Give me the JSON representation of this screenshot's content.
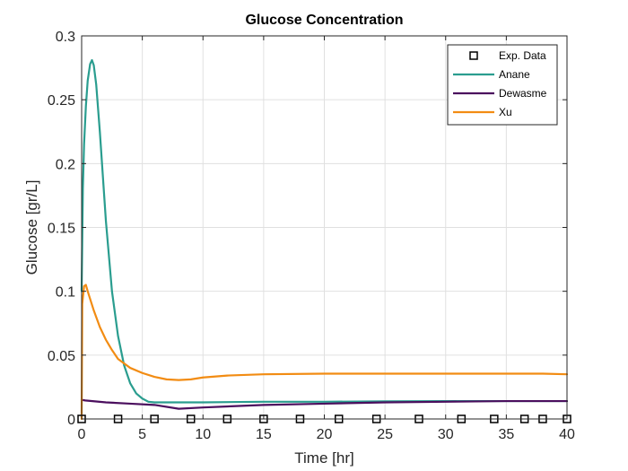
{
  "chart_data": {
    "type": "line",
    "title": "Glucose Concentration",
    "xlabel": "Time [hr]",
    "ylabel": "Glucose [gr/L]",
    "xlim": [
      0,
      40
    ],
    "ylim": [
      0,
      0.3
    ],
    "xticks": [
      0,
      5,
      10,
      15,
      20,
      25,
      30,
      35,
      40
    ],
    "yticks": [
      0,
      0.05,
      0.1,
      0.15,
      0.2,
      0.25,
      0.3
    ],
    "ytick_labels": [
      "0",
      "0.05",
      "0.1",
      "0.15",
      "0.2",
      "0.25",
      "0.3"
    ],
    "grid": true,
    "legend_position": "top-right",
    "series": [
      {
        "name": "Exp. Data",
        "style": "markers",
        "marker": "square",
        "color": "#000000",
        "x": [
          0,
          3,
          6,
          9,
          12,
          15,
          18,
          21.2,
          24.3,
          27.8,
          31.3,
          34,
          36.5,
          38,
          40
        ],
        "y": [
          0,
          0,
          0,
          0,
          0,
          0,
          0,
          0,
          0,
          0,
          0,
          0,
          0,
          0,
          0
        ]
      },
      {
        "name": "Anane",
        "style": "line",
        "color": "#2a9d8f",
        "x": [
          0,
          0.1,
          0.2,
          0.35,
          0.5,
          0.7,
          0.85,
          1.0,
          1.2,
          1.5,
          2.0,
          2.5,
          3.0,
          3.5,
          4.0,
          4.5,
          5.0,
          5.5,
          6.0,
          7.0,
          8.0,
          10.0,
          15.0,
          20.0,
          25.0,
          30.0,
          35.0,
          40.0
        ],
        "y": [
          0.1,
          0.18,
          0.215,
          0.245,
          0.265,
          0.278,
          0.281,
          0.277,
          0.262,
          0.225,
          0.155,
          0.1,
          0.065,
          0.042,
          0.028,
          0.02,
          0.016,
          0.0135,
          0.013,
          0.013,
          0.013,
          0.013,
          0.0135,
          0.0135,
          0.0138,
          0.014,
          0.014,
          0.014
        ]
      },
      {
        "name": "Dewasme",
        "style": "line",
        "color": "#4b0f5e",
        "x": [
          0,
          0.3,
          2.0,
          4.0,
          6.0,
          8.0,
          10.0,
          15.0,
          20.0,
          25.0,
          30.0,
          35.0,
          40.0
        ],
        "y": [
          0.015,
          0.0145,
          0.013,
          0.012,
          0.011,
          0.008,
          0.009,
          0.011,
          0.012,
          0.013,
          0.0135,
          0.014,
          0.014
        ]
      },
      {
        "name": "Xu",
        "style": "line",
        "color": "#f28c13",
        "x": [
          0,
          0.05,
          0.2,
          0.35,
          0.5,
          1.0,
          1.5,
          2.0,
          2.5,
          3.0,
          4.0,
          5.0,
          6.0,
          7.0,
          8.0,
          9.0,
          10.0,
          12.0,
          15.0,
          20.0,
          25.0,
          30.0,
          35.0,
          38.0,
          40.0
        ],
        "y": [
          0.0,
          0.09,
          0.104,
          0.105,
          0.1,
          0.085,
          0.072,
          0.062,
          0.054,
          0.047,
          0.04,
          0.036,
          0.033,
          0.031,
          0.0305,
          0.031,
          0.0325,
          0.034,
          0.035,
          0.0355,
          0.0355,
          0.0355,
          0.0355,
          0.0355,
          0.035
        ]
      }
    ]
  }
}
